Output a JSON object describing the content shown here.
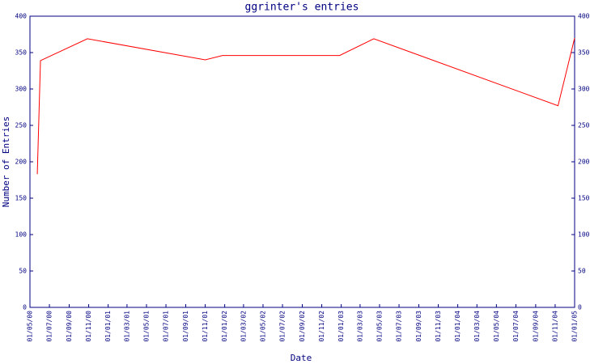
{
  "chart_data": {
    "type": "line",
    "title": "ggrinter's entries",
    "x_label": "Date",
    "y_label": "Number of Entries",
    "x": [
      "2000-05-24",
      "2000-06-03",
      "2000-10-28",
      "2001-11-01",
      "2001-12-25",
      "2002-12-27",
      "2003-04-13",
      "2004-11-10",
      "2005-01-01"
    ],
    "series": [
      {
        "name": "entries",
        "color": "#ff0000",
        "values": [
          183,
          339,
          369,
          340,
          346,
          346,
          369,
          277,
          370
        ]
      }
    ],
    "xlim": [
      "2000-05-01",
      "2005-01-01"
    ],
    "xticks": [
      {
        "value": "2000-05-01",
        "label": "01/05/00"
      },
      {
        "value": "2000-07-01",
        "label": "01/07/00"
      },
      {
        "value": "2000-09-01",
        "label": "01/09/00"
      },
      {
        "value": "2000-11-01",
        "label": "01/11/00"
      },
      {
        "value": "2001-01-01",
        "label": "01/01/01"
      },
      {
        "value": "2001-03-01",
        "label": "01/03/01"
      },
      {
        "value": "2001-05-01",
        "label": "01/05/01"
      },
      {
        "value": "2001-07-01",
        "label": "01/07/01"
      },
      {
        "value": "2001-09-01",
        "label": "01/09/01"
      },
      {
        "value": "2001-11-01",
        "label": "01/11/01"
      },
      {
        "value": "2002-01-01",
        "label": "01/01/02"
      },
      {
        "value": "2002-03-01",
        "label": "01/03/02"
      },
      {
        "value": "2002-05-01",
        "label": "01/05/02"
      },
      {
        "value": "2002-07-01",
        "label": "01/07/02"
      },
      {
        "value": "2002-09-01",
        "label": "01/09/02"
      },
      {
        "value": "2002-11-01",
        "label": "01/11/02"
      },
      {
        "value": "2003-01-01",
        "label": "01/01/03"
      },
      {
        "value": "2003-03-01",
        "label": "01/03/03"
      },
      {
        "value": "2003-05-01",
        "label": "01/05/03"
      },
      {
        "value": "2003-07-01",
        "label": "01/07/03"
      },
      {
        "value": "2003-09-01",
        "label": "01/09/03"
      },
      {
        "value": "2003-11-01",
        "label": "01/11/03"
      },
      {
        "value": "2004-01-01",
        "label": "01/01/04"
      },
      {
        "value": "2004-03-01",
        "label": "01/03/04"
      },
      {
        "value": "2004-05-01",
        "label": "01/05/04"
      },
      {
        "value": "2004-07-01",
        "label": "01/07/04"
      },
      {
        "value": "2004-09-01",
        "label": "01/09/04"
      },
      {
        "value": "2004-11-01",
        "label": "01/11/04"
      },
      {
        "value": "2005-01-01",
        "label": "01/01/05"
      }
    ],
    "ylim": [
      0,
      400
    ],
    "yticks": [
      0,
      50,
      100,
      150,
      200,
      250,
      300,
      350,
      400
    ],
    "grid": false
  }
}
